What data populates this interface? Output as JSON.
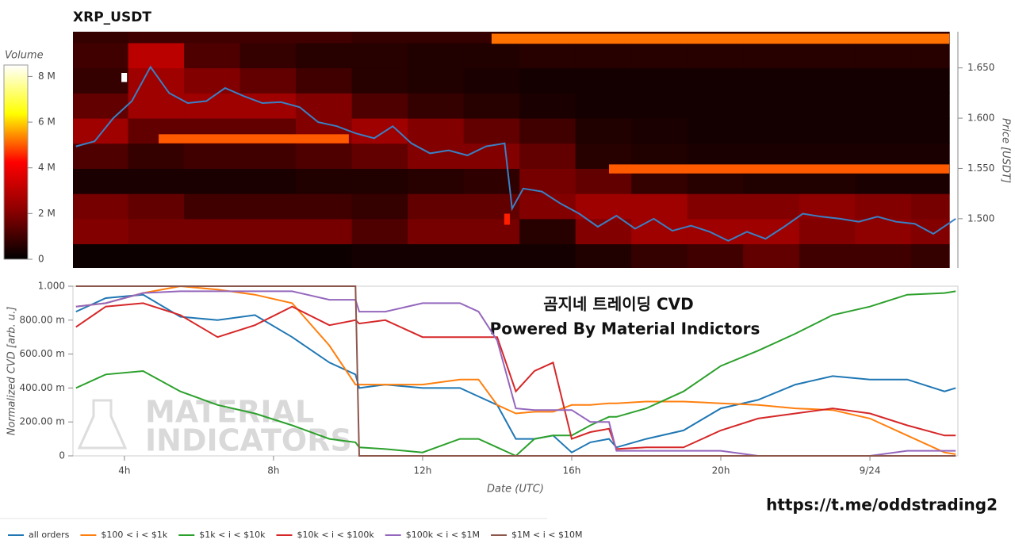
{
  "chart_data": [
    {
      "type": "heatmap",
      "title": "XRP_USDT",
      "colorbar_label": "Volume",
      "ylabel": "Price [USDT]",
      "colormap": [
        "#000000",
        "#8b0000",
        "#ff0000",
        "#ffff00",
        "#ffffff"
      ],
      "zlim": [
        0,
        8500000
      ],
      "zticks": [
        0,
        {
          "value": 2000000,
          "label": "2 M"
        },
        {
          "value": 4000000,
          "label": "4 M"
        },
        {
          "value": 6000000,
          "label": "6 M"
        },
        {
          "value": 8000000,
          "label": "8 M"
        }
      ],
      "xlim": [
        2.62,
        26.36
      ],
      "ylim": [
        1.451,
        1.686
      ],
      "yticks": [
        {
          "value": 1.5,
          "label": "1.500"
        },
        {
          "value": 1.55,
          "label": "1.550"
        },
        {
          "value": 1.6,
          "label": "1.600"
        },
        {
          "value": 1.65,
          "label": "1.650"
        }
      ],
      "x_edges": [
        2.62,
        4.1,
        5.6,
        7.1,
        8.6,
        10.1,
        11.6,
        13.1,
        14.6,
        16.1,
        17.6,
        19.1,
        20.6,
        22.1,
        23.6,
        25.1,
        26.13
      ],
      "y_edges": [
        1.451,
        1.475,
        1.5,
        1.525,
        1.55,
        1.575,
        1.6,
        1.625,
        1.65,
        1.675,
        1.686
      ],
      "z": [
        [
          200000,
          200000,
          200000,
          200000,
          200000,
          300000,
          300000,
          300000,
          300000,
          500000,
          800000,
          1000000,
          1500000,
          1000000,
          1000000,
          800000
        ],
        [
          2000000,
          1800000,
          1800000,
          1800000,
          1800000,
          1200000,
          1800000,
          1800000,
          600000,
          2000000,
          2500000,
          2500000,
          2500000,
          2000000,
          2200000,
          2000000
        ],
        [
          1800000,
          1500000,
          1000000,
          1000000,
          1000000,
          800000,
          1500000,
          1500000,
          2000000,
          2500000,
          2500000,
          2000000,
          2000000,
          2200000,
          2000000,
          1800000
        ],
        [
          400000,
          400000,
          400000,
          400000,
          500000,
          500000,
          600000,
          700000,
          1800000,
          1500000,
          800000,
          600000,
          500000,
          500000,
          400000,
          400000
        ],
        [
          1200000,
          800000,
          1000000,
          1000000,
          1200000,
          1500000,
          2000000,
          2000000,
          1500000,
          600000,
          500000,
          400000,
          400000,
          400000,
          400000,
          400000
        ],
        [
          2500000,
          1500000,
          1500000,
          1500000,
          2000000,
          2500000,
          2000000,
          1500000,
          1000000,
          500000,
          400000,
          300000,
          300000,
          300000,
          300000,
          300000
        ],
        [
          1500000,
          2500000,
          2500000,
          2500000,
          2000000,
          1200000,
          800000,
          600000,
          400000,
          300000,
          300000,
          300000,
          300000,
          300000,
          300000,
          300000
        ],
        [
          800000,
          2500000,
          2000000,
          1500000,
          1000000,
          600000,
          500000,
          400000,
          300000,
          300000,
          300000,
          300000,
          300000,
          300000,
          300000,
          300000
        ],
        [
          1000000,
          3000000,
          1200000,
          800000,
          600000,
          600000,
          500000,
          500000,
          600000,
          600000,
          600000,
          600000,
          600000,
          600000,
          600000,
          600000
        ],
        [
          800000,
          1000000,
          1000000,
          1000000,
          1000000,
          800000,
          800000,
          800000,
          800000,
          800000,
          800000,
          800000,
          800000,
          800000,
          800000,
          800000
        ]
      ],
      "blocks": [
        {
          "x": [
            13.85,
            26.13
          ],
          "y": [
            1.674,
            1.684
          ],
          "value": 5200000
        },
        {
          "x": [
            4.92,
            10.02
          ],
          "y": [
            1.575,
            1.584
          ],
          "value": 5000000
        },
        {
          "x": [
            17.0,
            26.13
          ],
          "y": [
            1.545,
            1.554
          ],
          "value": 5000000
        },
        {
          "x": [
            3.92,
            4.07
          ],
          "y": [
            1.636,
            1.645
          ],
          "value": 8500000
        },
        {
          "x": [
            14.19,
            14.34
          ],
          "y": [
            1.494,
            1.505
          ],
          "value": 4500000
        }
      ],
      "line": {
        "color": "#3a80c4",
        "x": [
          2.7,
          3.2,
          3.7,
          4.2,
          4.7,
          5.2,
          5.7,
          6.2,
          6.7,
          7.2,
          7.7,
          8.2,
          8.7,
          9.2,
          9.7,
          10.2,
          10.7,
          11.2,
          11.7,
          12.2,
          12.7,
          13.2,
          13.7,
          14.2,
          14.4,
          14.7,
          15.2,
          15.7,
          16.2,
          16.7,
          17.2,
          17.7,
          18.2,
          18.7,
          19.2,
          19.7,
          20.2,
          20.7,
          21.2,
          21.7,
          22.2,
          22.7,
          23.2,
          23.7,
          24.2,
          24.7,
          25.2,
          25.7,
          26.3
        ],
        "values": [
          1.572,
          1.577,
          1.6,
          1.617,
          1.651,
          1.625,
          1.615,
          1.617,
          1.63,
          1.622,
          1.615,
          1.616,
          1.611,
          1.596,
          1.592,
          1.585,
          1.58,
          1.592,
          1.575,
          1.565,
          1.568,
          1.563,
          1.572,
          1.575,
          1.51,
          1.53,
          1.527,
          1.515,
          1.505,
          1.492,
          1.503,
          1.49,
          1.5,
          1.488,
          1.493,
          1.487,
          1.478,
          1.487,
          1.48,
          1.492,
          1.505,
          1.502,
          1.5,
          1.497,
          1.502,
          1.497,
          1.495,
          1.485,
          1.5
        ]
      }
    },
    {
      "type": "line",
      "xlabel": "Date (UTC)",
      "ylabel": "Normalized CVD [arb. u.]",
      "xlim": [
        2.62,
        26.36
      ],
      "xticks": [
        {
          "value": 4,
          "label": "4h"
        },
        {
          "value": 8,
          "label": "8h"
        },
        {
          "value": 12,
          "label": "12h"
        },
        {
          "value": 16,
          "label": "16h"
        },
        {
          "value": 20,
          "label": "20h"
        },
        {
          "value": 24,
          "label": "9/24"
        }
      ],
      "ylim": [
        0,
        1
      ],
      "yticks": [
        0,
        {
          "value": 0.2,
          "label": "200.00 m"
        },
        {
          "value": 0.4,
          "label": "400.00 m"
        },
        {
          "value": 0.6,
          "label": "600.00 m"
        },
        {
          "value": 0.8,
          "label": "800.00 m"
        },
        {
          "value": 1,
          "label": "1.000"
        }
      ],
      "legend": "bottom-left",
      "annotations": [
        "곰지네 트레이딩 CVD",
        "Powered By Material Indictors"
      ],
      "watermark": [
        "MATERIAL",
        "INDICATORS"
      ],
      "source": "https://t.me/oddstrading2",
      "x": [
        2.7,
        3.5,
        4.5,
        5.5,
        6.5,
        7.5,
        8.5,
        9.5,
        10.2,
        10.3,
        11,
        12,
        13,
        13.5,
        14,
        14.5,
        15,
        15.5,
        16,
        16.5,
        17,
        17.2,
        18,
        19,
        20,
        21,
        22,
        23,
        24,
        25,
        26,
        26.3
      ],
      "series": [
        {
          "name": "all orders",
          "color": "#1f77b4",
          "values": [
            0.85,
            0.93,
            0.95,
            0.82,
            0.8,
            0.83,
            0.7,
            0.55,
            0.48,
            0.4,
            0.42,
            0.4,
            0.4,
            0.35,
            0.3,
            0.1,
            0.1,
            0.12,
            0.02,
            0.08,
            0.1,
            0.05,
            0.1,
            0.15,
            0.28,
            0.33,
            0.42,
            0.47,
            0.45,
            0.45,
            0.38,
            0.4
          ]
        },
        {
          "name": "$100 < i < $1k",
          "color": "#ff7f0e",
          "values": [
            0.88,
            0.9,
            0.96,
            1,
            0.98,
            0.95,
            0.9,
            0.65,
            0.42,
            0.42,
            0.42,
            0.42,
            0.45,
            0.45,
            0.3,
            0.25,
            0.26,
            0.26,
            0.3,
            0.3,
            0.31,
            0.31,
            0.32,
            0.32,
            0.31,
            0.3,
            0.28,
            0.27,
            0.22,
            0.12,
            0.02,
            0.01
          ]
        },
        {
          "name": "$1k < i < $10k",
          "color": "#2ca02c",
          "values": [
            0.4,
            0.48,
            0.5,
            0.38,
            0.3,
            0.25,
            0.18,
            0.1,
            0.08,
            0.05,
            0.04,
            0.02,
            0.1,
            0.1,
            0.05,
            0,
            0.1,
            0.12,
            0.12,
            0.18,
            0.23,
            0.23,
            0.28,
            0.38,
            0.53,
            0.62,
            0.72,
            0.83,
            0.88,
            0.95,
            0.96,
            0.97
          ]
        },
        {
          "name": "$10k < i < $100k",
          "color": "#d62728",
          "values": [
            0.76,
            0.88,
            0.9,
            0.83,
            0.7,
            0.77,
            0.88,
            0.77,
            0.8,
            0.78,
            0.8,
            0.7,
            0.7,
            0.7,
            0.7,
            0.38,
            0.5,
            0.55,
            0.1,
            0.14,
            0.16,
            0.04,
            0.05,
            0.05,
            0.15,
            0.22,
            0.25,
            0.28,
            0.25,
            0.18,
            0.12,
            0.12
          ]
        },
        {
          "name": "$100k < i < $1M",
          "color": "#9467bd",
          "values": [
            0.88,
            0.9,
            0.96,
            0.97,
            0.97,
            0.97,
            0.97,
            0.92,
            0.92,
            0.85,
            0.85,
            0.9,
            0.9,
            0.85,
            0.68,
            0.28,
            0.27,
            0.27,
            0.27,
            0.2,
            0.2,
            0.03,
            0.03,
            0.03,
            0.03,
            0,
            0,
            0,
            0,
            0.03,
            0.03,
            0.03
          ]
        },
        {
          "name": "$1M < i < $10M",
          "color": "#8c564b",
          "values": [
            1,
            1,
            1,
            1,
            1,
            1,
            1,
            1,
            1,
            0,
            0,
            0,
            0,
            0,
            0,
            0,
            0,
            0,
            0,
            0,
            0,
            0,
            0,
            0,
            0,
            0,
            0,
            0,
            0,
            0,
            0,
            0
          ]
        }
      ]
    }
  ]
}
